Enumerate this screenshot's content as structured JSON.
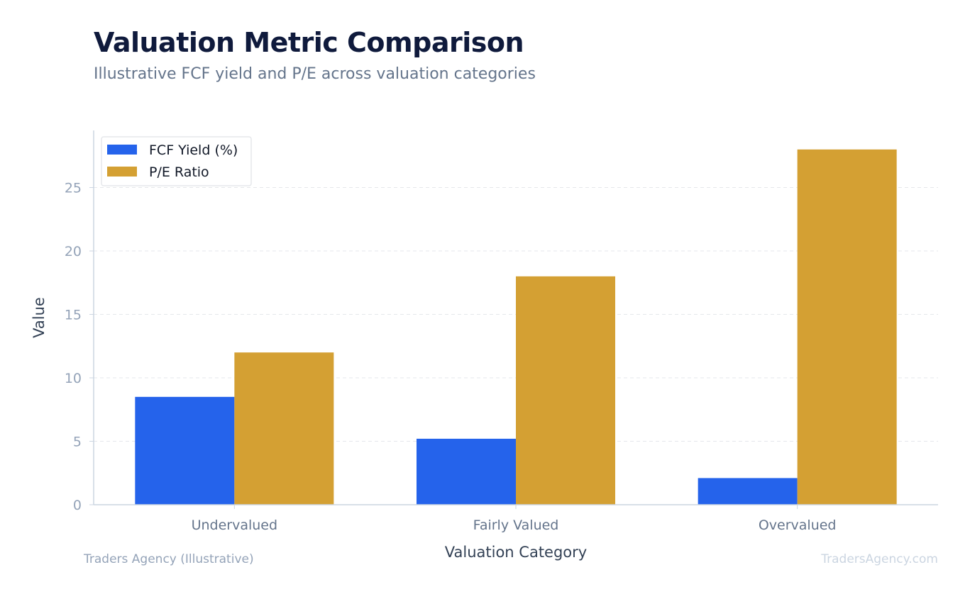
{
  "header": {
    "title": "Valuation Metric Comparison",
    "subtitle": "Illustrative FCF yield and P/E across valuation categories"
  },
  "footer": {
    "source": "Traders Agency (Illustrative)",
    "watermark": "TradersAgency.com"
  },
  "chart_data": {
    "type": "bar",
    "title": "Valuation Metric Comparison",
    "subtitle": "Illustrative FCF yield and P/E across valuation categories",
    "xlabel": "Valuation Category",
    "ylabel": "Value",
    "categories": [
      "Undervalued",
      "Fairly Valued",
      "Overvalued"
    ],
    "series": [
      {
        "name": "FCF Yield (%)",
        "values": [
          8.5,
          5.2,
          2.1
        ],
        "color": "#2563eb"
      },
      {
        "name": "P/E Ratio",
        "values": [
          12,
          18,
          28
        ],
        "color": "#d4a033"
      }
    ],
    "ylim": [
      0,
      29.5
    ],
    "yticks": [
      0,
      5,
      10,
      15,
      20,
      25
    ],
    "grid": "horizontal dashed",
    "legend_position": "top-left",
    "colors": {
      "axis": "#cbd5e1",
      "grid": "#e5e7eb",
      "tick_text": "#94a3b8"
    }
  }
}
